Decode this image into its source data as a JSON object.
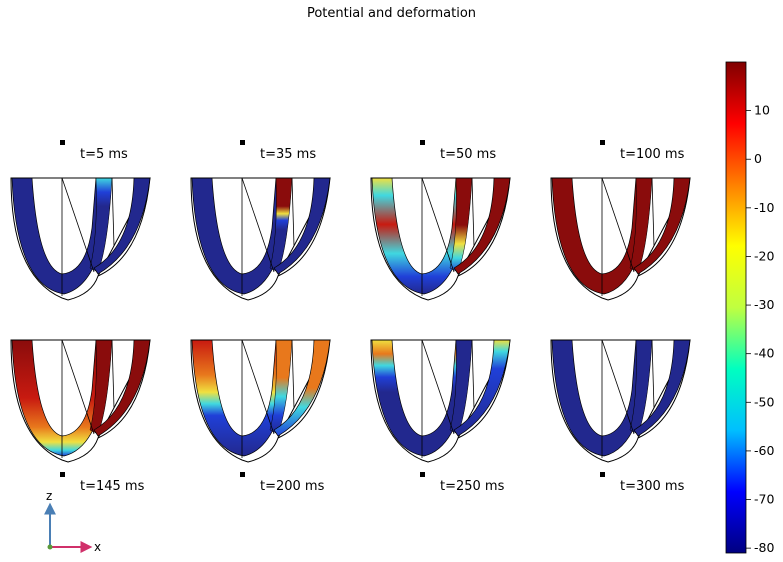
{
  "title": "Potential and deformation",
  "frames": [
    {
      "label": "t=5 ms",
      "row": 0,
      "col": 0,
      "label_pos": "above",
      "phase": "depolarizing-start"
    },
    {
      "label": "t=35 ms",
      "row": 0,
      "col": 1,
      "label_pos": "above",
      "phase": "septum-depolarizing"
    },
    {
      "label": "t=50 ms",
      "row": 0,
      "col": 2,
      "label_pos": "above",
      "phase": "spreading"
    },
    {
      "label": "t=100 ms",
      "row": 0,
      "col": 3,
      "label_pos": "above",
      "phase": "fully-depolarized"
    },
    {
      "label": "t=145 ms",
      "row": 1,
      "col": 0,
      "label_pos": "below",
      "phase": "apex-repolarizing"
    },
    {
      "label": "t=200 ms",
      "row": 1,
      "col": 1,
      "label_pos": "below",
      "phase": "repolarizing-mid"
    },
    {
      "label": "t=250 ms",
      "row": 1,
      "col": 2,
      "label_pos": "below",
      "phase": "mostly-repolarized"
    },
    {
      "label": "t=300 ms",
      "row": 1,
      "col": 3,
      "label_pos": "below",
      "phase": "resting"
    }
  ],
  "colorbar": {
    "ticks": [
      "10",
      "0",
      "-10",
      "-20",
      "-30",
      "-40",
      "-50",
      "-60",
      "-70",
      "-80"
    ],
    "tick_values": [
      10,
      0,
      -10,
      -20,
      -30,
      -40,
      -50,
      -60,
      -70,
      -80
    ],
    "min": -81,
    "max": 20,
    "colors": [
      "#000080",
      "#0000ff",
      "#00bfff",
      "#00ffc0",
      "#c0ff40",
      "#ffff00",
      "#ff8000",
      "#ff0000",
      "#800000"
    ]
  },
  "axes": {
    "vertical": "z",
    "horizontal": "x"
  }
}
